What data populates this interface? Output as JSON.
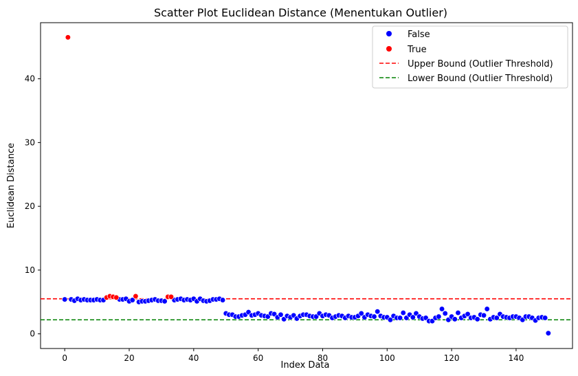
{
  "chart_data": {
    "type": "scatter",
    "title": "Scatter Plot Euclidean Distance (Menentukan Outlier)",
    "xlabel": "Index Data",
    "ylabel": "Euclidean Distance",
    "xlim": [
      -7.5,
      157.5
    ],
    "ylim": [
      -2.3,
      48.8
    ],
    "xticks": [
      0,
      20,
      40,
      60,
      80,
      100,
      120,
      140
    ],
    "yticks": [
      0,
      10,
      20,
      30,
      40
    ],
    "grid": false,
    "legend_position": "top-right",
    "colors": {
      "False": "#0000ff",
      "True": "#ff0000",
      "upper": "#ff0000",
      "lower": "#008000"
    },
    "legend": [
      "False",
      "True",
      "Upper Bound (Outlier Threshold)",
      "Lower Bound (Outlier Threshold)"
    ],
    "thresholds": [
      {
        "name": "Upper Bound (Outlier Threshold)",
        "y": 5.5
      },
      {
        "name": "Lower Bound (Outlier Threshold)",
        "y": 2.2
      }
    ],
    "series": [
      {
        "name": "False",
        "points": [
          [
            0,
            5.4
          ],
          [
            2,
            5.4
          ],
          [
            3,
            5.2
          ],
          [
            4,
            5.5
          ],
          [
            5,
            5.3
          ],
          [
            6,
            5.4
          ],
          [
            7,
            5.3
          ],
          [
            8,
            5.3
          ],
          [
            9,
            5.3
          ],
          [
            10,
            5.4
          ],
          [
            11,
            5.3
          ],
          [
            12,
            5.3
          ],
          [
            17,
            5.4
          ],
          [
            18,
            5.4
          ],
          [
            19,
            5.5
          ],
          [
            20,
            5.1
          ],
          [
            21,
            5.3
          ],
          [
            23,
            5.0
          ],
          [
            24,
            5.1
          ],
          [
            25,
            5.1
          ],
          [
            26,
            5.2
          ],
          [
            27,
            5.3
          ],
          [
            28,
            5.4
          ],
          [
            29,
            5.2
          ],
          [
            30,
            5.2
          ],
          [
            31,
            5.1
          ],
          [
            34,
            5.3
          ],
          [
            35,
            5.4
          ],
          [
            36,
            5.5
          ],
          [
            37,
            5.3
          ],
          [
            38,
            5.4
          ],
          [
            39,
            5.3
          ],
          [
            40,
            5.5
          ],
          [
            41,
            5.1
          ],
          [
            42,
            5.5
          ],
          [
            43,
            5.2
          ],
          [
            44,
            5.1
          ],
          [
            45,
            5.2
          ],
          [
            46,
            5.4
          ],
          [
            47,
            5.4
          ],
          [
            48,
            5.5
          ],
          [
            49,
            5.3
          ],
          [
            50,
            3.2
          ],
          [
            51,
            3.0
          ],
          [
            52,
            3.0
          ],
          [
            53,
            2.7
          ],
          [
            54,
            2.7
          ],
          [
            55,
            2.9
          ],
          [
            56,
            3.0
          ],
          [
            57,
            3.4
          ],
          [
            58,
            2.9
          ],
          [
            59,
            3.0
          ],
          [
            60,
            3.2
          ],
          [
            61,
            2.9
          ],
          [
            62,
            2.8
          ],
          [
            63,
            2.7
          ],
          [
            64,
            3.2
          ],
          [
            65,
            3.1
          ],
          [
            66,
            2.6
          ],
          [
            67,
            3.0
          ],
          [
            68,
            2.3
          ],
          [
            69,
            2.8
          ],
          [
            70,
            2.6
          ],
          [
            71,
            2.9
          ],
          [
            72,
            2.4
          ],
          [
            73,
            2.8
          ],
          [
            74,
            3.0
          ],
          [
            75,
            3.0
          ],
          [
            76,
            2.8
          ],
          [
            77,
            2.7
          ],
          [
            78,
            2.7
          ],
          [
            79,
            3.2
          ],
          [
            80,
            2.8
          ],
          [
            81,
            3.0
          ],
          [
            82,
            2.9
          ],
          [
            83,
            2.5
          ],
          [
            84,
            2.7
          ],
          [
            85,
            2.9
          ],
          [
            86,
            2.8
          ],
          [
            87,
            2.5
          ],
          [
            88,
            2.8
          ],
          [
            89,
            2.6
          ],
          [
            90,
            2.6
          ],
          [
            91,
            2.8
          ],
          [
            92,
            3.2
          ],
          [
            93,
            2.6
          ],
          [
            94,
            3.0
          ],
          [
            95,
            2.8
          ],
          [
            96,
            2.7
          ],
          [
            97,
            3.5
          ],
          [
            98,
            2.8
          ],
          [
            99,
            2.6
          ],
          [
            100,
            2.6
          ],
          [
            101,
            2.2
          ],
          [
            102,
            2.8
          ],
          [
            103,
            2.5
          ],
          [
            104,
            2.5
          ],
          [
            105,
            3.3
          ],
          [
            106,
            2.5
          ],
          [
            107,
            3.0
          ],
          [
            108,
            2.6
          ],
          [
            109,
            3.2
          ],
          [
            110,
            2.7
          ],
          [
            111,
            2.4
          ],
          [
            112,
            2.5
          ],
          [
            113,
            2.0
          ],
          [
            114,
            2.0
          ],
          [
            115,
            2.5
          ],
          [
            116,
            2.7
          ],
          [
            117,
            3.9
          ],
          [
            118,
            3.2
          ],
          [
            119,
            2.2
          ],
          [
            120,
            2.7
          ],
          [
            121,
            2.3
          ],
          [
            122,
            3.3
          ],
          [
            123,
            2.5
          ],
          [
            124,
            2.8
          ],
          [
            125,
            3.1
          ],
          [
            126,
            2.5
          ],
          [
            127,
            2.6
          ],
          [
            128,
            2.3
          ],
          [
            129,
            3.0
          ],
          [
            130,
            2.9
          ],
          [
            131,
            3.9
          ],
          [
            132,
            2.3
          ],
          [
            133,
            2.6
          ],
          [
            134,
            2.5
          ],
          [
            135,
            3.1
          ],
          [
            136,
            2.7
          ],
          [
            137,
            2.6
          ],
          [
            138,
            2.5
          ],
          [
            139,
            2.7
          ],
          [
            140,
            2.7
          ],
          [
            141,
            2.5
          ],
          [
            142,
            2.2
          ],
          [
            143,
            2.7
          ],
          [
            144,
            2.7
          ],
          [
            145,
            2.5
          ],
          [
            146,
            2.1
          ],
          [
            147,
            2.5
          ],
          [
            148,
            2.6
          ],
          [
            149,
            2.5
          ],
          [
            150,
            0.1
          ]
        ]
      },
      {
        "name": "True",
        "points": [
          [
            1,
            46.5
          ],
          [
            13,
            5.7
          ],
          [
            14,
            5.9
          ],
          [
            15,
            5.8
          ],
          [
            16,
            5.7
          ],
          [
            22,
            5.9
          ],
          [
            32,
            5.8
          ],
          [
            33,
            5.8
          ]
        ]
      }
    ]
  }
}
